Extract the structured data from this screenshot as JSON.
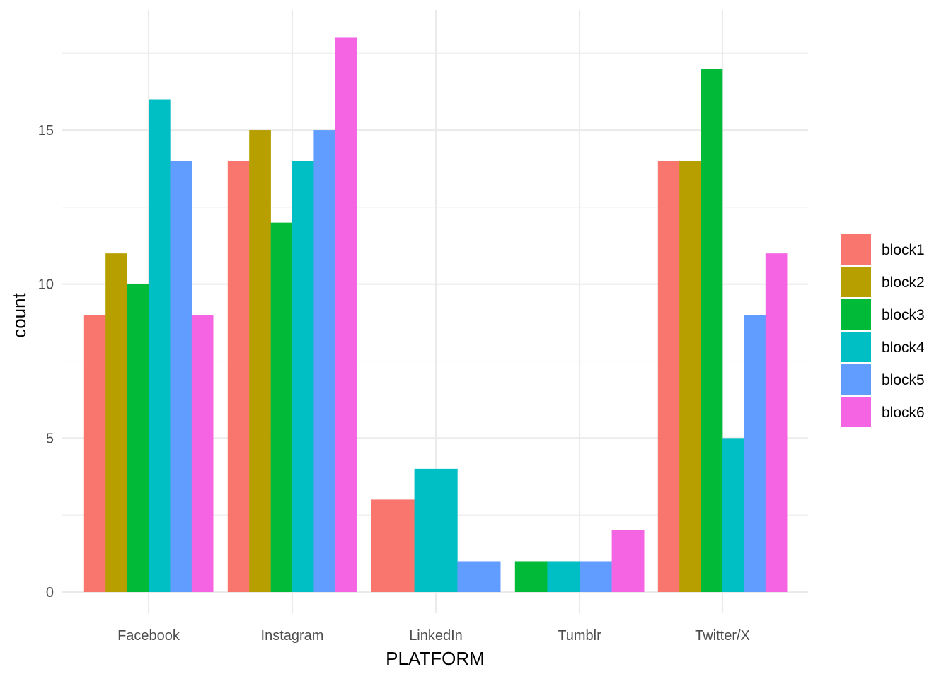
{
  "chart_data": {
    "type": "bar",
    "xlabel": "PLATFORM",
    "ylabel": "count",
    "categories": [
      "Facebook",
      "Instagram",
      "LinkedIn",
      "Tumblr",
      "Twitter/X"
    ],
    "ylim": [
      0,
      19
    ],
    "yticks": [
      "0",
      "5",
      "10",
      "15"
    ],
    "grid": true,
    "legend_position": "right",
    "series": [
      {
        "name": "block1",
        "color": "#F8766D",
        "values": [
          9,
          14,
          3,
          null,
          14
        ]
      },
      {
        "name": "block2",
        "color": "#B79F00",
        "values": [
          11,
          15,
          null,
          null,
          14
        ]
      },
      {
        "name": "block3",
        "color": "#00BA38",
        "values": [
          10,
          12,
          null,
          1,
          17
        ]
      },
      {
        "name": "block4",
        "color": "#00BFC4",
        "values": [
          16,
          14,
          4,
          1,
          5
        ]
      },
      {
        "name": "block5",
        "color": "#619CFF",
        "values": [
          14,
          15,
          1,
          1,
          9
        ]
      },
      {
        "name": "block6",
        "color": "#F564E3",
        "values": [
          9,
          18,
          null,
          2,
          11
        ]
      }
    ]
  }
}
